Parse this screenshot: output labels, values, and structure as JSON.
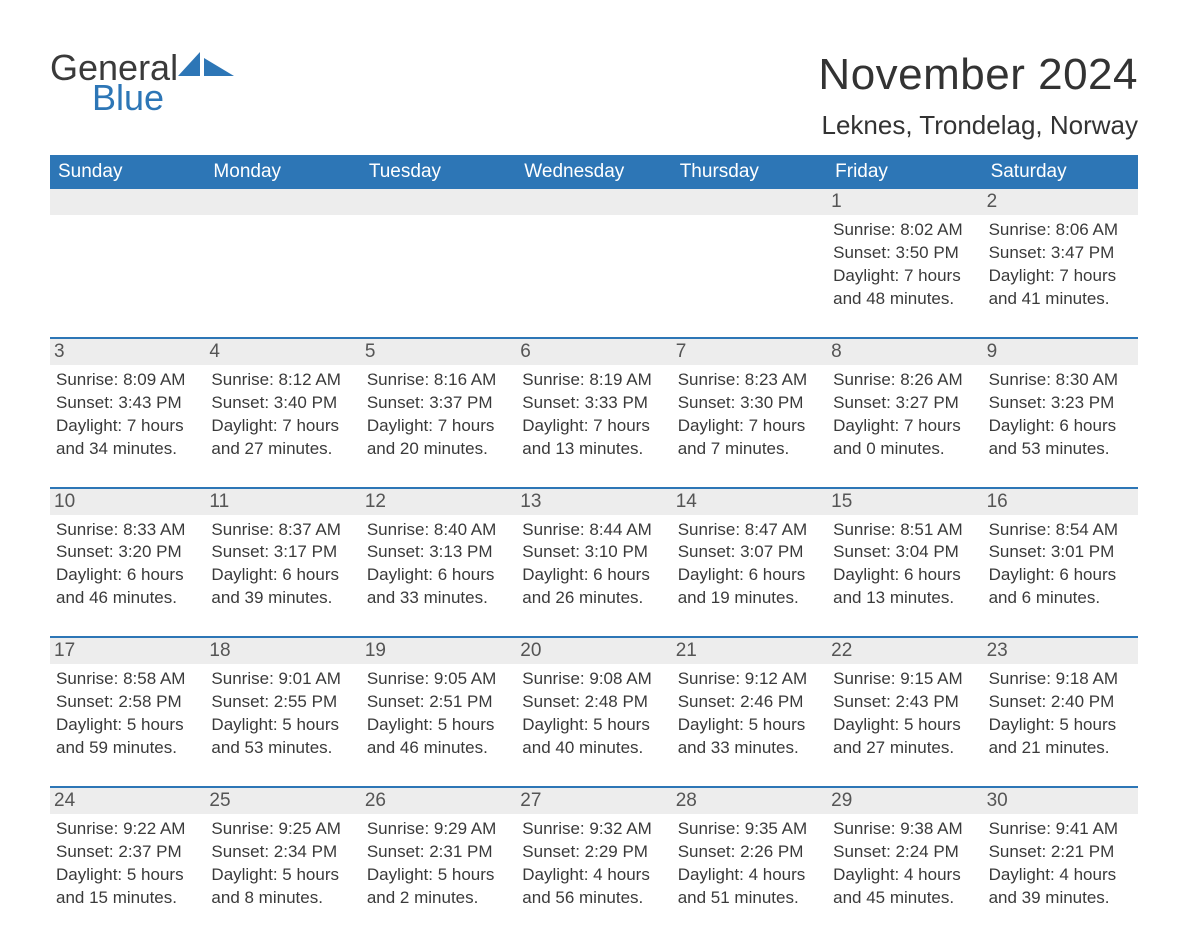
{
  "brand": {
    "word1": "General",
    "word2": "Blue",
    "accent_color": "#2d76b6"
  },
  "title": {
    "month": "November 2024",
    "location": "Leknes, Trondelag, Norway"
  },
  "styling": {
    "header_bg": "#2d76b6",
    "header_text_color": "#ffffff",
    "daynum_bg": "#ededed",
    "body_text_color": "#3a3a3a",
    "rule_color": "#2d76b6",
    "background": "#ffffff",
    "title_fontsize": 44,
    "location_fontsize": 26,
    "header_fontsize": 19,
    "cell_fontsize": 17
  },
  "day_names": [
    "Sunday",
    "Monday",
    "Tuesday",
    "Wednesday",
    "Thursday",
    "Friday",
    "Saturday"
  ],
  "weeks": [
    [
      {
        "blank": true
      },
      {
        "blank": true
      },
      {
        "blank": true
      },
      {
        "blank": true
      },
      {
        "blank": true
      },
      {
        "day": "1",
        "sunrise": "Sunrise: 8:02 AM",
        "sunset": "Sunset: 3:50 PM",
        "dl1": "Daylight: 7 hours",
        "dl2": "and 48 minutes."
      },
      {
        "day": "2",
        "sunrise": "Sunrise: 8:06 AM",
        "sunset": "Sunset: 3:47 PM",
        "dl1": "Daylight: 7 hours",
        "dl2": "and 41 minutes."
      }
    ],
    [
      {
        "day": "3",
        "sunrise": "Sunrise: 8:09 AM",
        "sunset": "Sunset: 3:43 PM",
        "dl1": "Daylight: 7 hours",
        "dl2": "and 34 minutes."
      },
      {
        "day": "4",
        "sunrise": "Sunrise: 8:12 AM",
        "sunset": "Sunset: 3:40 PM",
        "dl1": "Daylight: 7 hours",
        "dl2": "and 27 minutes."
      },
      {
        "day": "5",
        "sunrise": "Sunrise: 8:16 AM",
        "sunset": "Sunset: 3:37 PM",
        "dl1": "Daylight: 7 hours",
        "dl2": "and 20 minutes."
      },
      {
        "day": "6",
        "sunrise": "Sunrise: 8:19 AM",
        "sunset": "Sunset: 3:33 PM",
        "dl1": "Daylight: 7 hours",
        "dl2": "and 13 minutes."
      },
      {
        "day": "7",
        "sunrise": "Sunrise: 8:23 AM",
        "sunset": "Sunset: 3:30 PM",
        "dl1": "Daylight: 7 hours",
        "dl2": "and 7 minutes."
      },
      {
        "day": "8",
        "sunrise": "Sunrise: 8:26 AM",
        "sunset": "Sunset: 3:27 PM",
        "dl1": "Daylight: 7 hours",
        "dl2": "and 0 minutes."
      },
      {
        "day": "9",
        "sunrise": "Sunrise: 8:30 AM",
        "sunset": "Sunset: 3:23 PM",
        "dl1": "Daylight: 6 hours",
        "dl2": "and 53 minutes."
      }
    ],
    [
      {
        "day": "10",
        "sunrise": "Sunrise: 8:33 AM",
        "sunset": "Sunset: 3:20 PM",
        "dl1": "Daylight: 6 hours",
        "dl2": "and 46 minutes."
      },
      {
        "day": "11",
        "sunrise": "Sunrise: 8:37 AM",
        "sunset": "Sunset: 3:17 PM",
        "dl1": "Daylight: 6 hours",
        "dl2": "and 39 minutes."
      },
      {
        "day": "12",
        "sunrise": "Sunrise: 8:40 AM",
        "sunset": "Sunset: 3:13 PM",
        "dl1": "Daylight: 6 hours",
        "dl2": "and 33 minutes."
      },
      {
        "day": "13",
        "sunrise": "Sunrise: 8:44 AM",
        "sunset": "Sunset: 3:10 PM",
        "dl1": "Daylight: 6 hours",
        "dl2": "and 26 minutes."
      },
      {
        "day": "14",
        "sunrise": "Sunrise: 8:47 AM",
        "sunset": "Sunset: 3:07 PM",
        "dl1": "Daylight: 6 hours",
        "dl2": "and 19 minutes."
      },
      {
        "day": "15",
        "sunrise": "Sunrise: 8:51 AM",
        "sunset": "Sunset: 3:04 PM",
        "dl1": "Daylight: 6 hours",
        "dl2": "and 13 minutes."
      },
      {
        "day": "16",
        "sunrise": "Sunrise: 8:54 AM",
        "sunset": "Sunset: 3:01 PM",
        "dl1": "Daylight: 6 hours",
        "dl2": "and 6 minutes."
      }
    ],
    [
      {
        "day": "17",
        "sunrise": "Sunrise: 8:58 AM",
        "sunset": "Sunset: 2:58 PM",
        "dl1": "Daylight: 5 hours",
        "dl2": "and 59 minutes."
      },
      {
        "day": "18",
        "sunrise": "Sunrise: 9:01 AM",
        "sunset": "Sunset: 2:55 PM",
        "dl1": "Daylight: 5 hours",
        "dl2": "and 53 minutes."
      },
      {
        "day": "19",
        "sunrise": "Sunrise: 9:05 AM",
        "sunset": "Sunset: 2:51 PM",
        "dl1": "Daylight: 5 hours",
        "dl2": "and 46 minutes."
      },
      {
        "day": "20",
        "sunrise": "Sunrise: 9:08 AM",
        "sunset": "Sunset: 2:48 PM",
        "dl1": "Daylight: 5 hours",
        "dl2": "and 40 minutes."
      },
      {
        "day": "21",
        "sunrise": "Sunrise: 9:12 AM",
        "sunset": "Sunset: 2:46 PM",
        "dl1": "Daylight: 5 hours",
        "dl2": "and 33 minutes."
      },
      {
        "day": "22",
        "sunrise": "Sunrise: 9:15 AM",
        "sunset": "Sunset: 2:43 PM",
        "dl1": "Daylight: 5 hours",
        "dl2": "and 27 minutes."
      },
      {
        "day": "23",
        "sunrise": "Sunrise: 9:18 AM",
        "sunset": "Sunset: 2:40 PM",
        "dl1": "Daylight: 5 hours",
        "dl2": "and 21 minutes."
      }
    ],
    [
      {
        "day": "24",
        "sunrise": "Sunrise: 9:22 AM",
        "sunset": "Sunset: 2:37 PM",
        "dl1": "Daylight: 5 hours",
        "dl2": "and 15 minutes."
      },
      {
        "day": "25",
        "sunrise": "Sunrise: 9:25 AM",
        "sunset": "Sunset: 2:34 PM",
        "dl1": "Daylight: 5 hours",
        "dl2": "and 8 minutes."
      },
      {
        "day": "26",
        "sunrise": "Sunrise: 9:29 AM",
        "sunset": "Sunset: 2:31 PM",
        "dl1": "Daylight: 5 hours",
        "dl2": "and 2 minutes."
      },
      {
        "day": "27",
        "sunrise": "Sunrise: 9:32 AM",
        "sunset": "Sunset: 2:29 PM",
        "dl1": "Daylight: 4 hours",
        "dl2": "and 56 minutes."
      },
      {
        "day": "28",
        "sunrise": "Sunrise: 9:35 AM",
        "sunset": "Sunset: 2:26 PM",
        "dl1": "Daylight: 4 hours",
        "dl2": "and 51 minutes."
      },
      {
        "day": "29",
        "sunrise": "Sunrise: 9:38 AM",
        "sunset": "Sunset: 2:24 PM",
        "dl1": "Daylight: 4 hours",
        "dl2": "and 45 minutes."
      },
      {
        "day": "30",
        "sunrise": "Sunrise: 9:41 AM",
        "sunset": "Sunset: 2:21 PM",
        "dl1": "Daylight: 4 hours",
        "dl2": "and 39 minutes."
      }
    ]
  ]
}
